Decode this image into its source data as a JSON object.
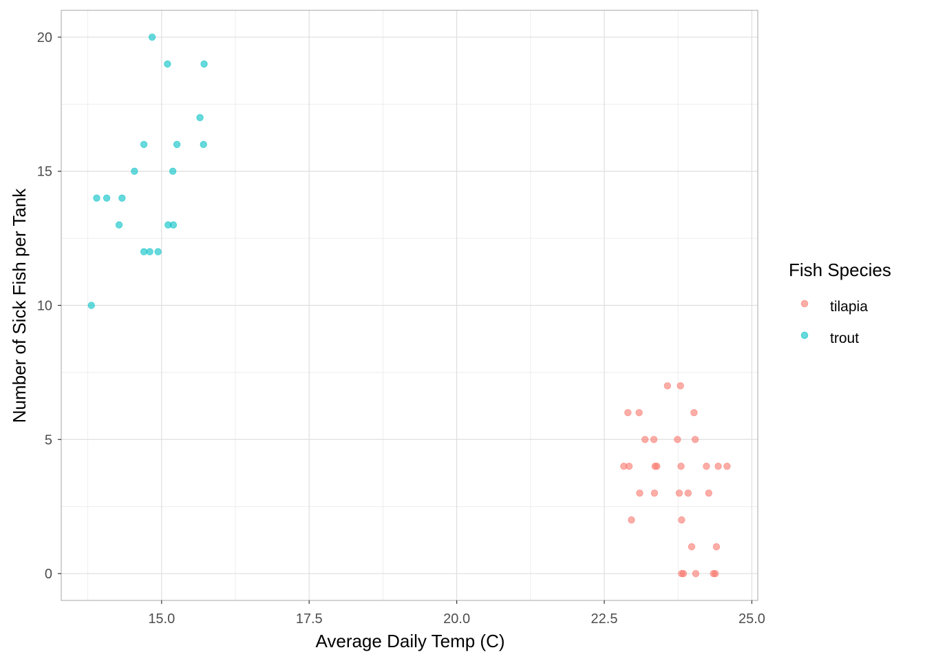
{
  "chart_data": {
    "type": "scatter",
    "title": "",
    "xlabel": "Average Daily Temp (C)",
    "ylabel": "Number of Sick Fish per Tank",
    "xlim": [
      13.3,
      25.1
    ],
    "ylim": [
      -1,
      21
    ],
    "x_ticks": [
      15.0,
      17.5,
      20.0,
      22.5,
      25.0
    ],
    "x_tick_labels": [
      "15.0",
      "17.5",
      "20.0",
      "22.5",
      "25.0"
    ],
    "y_ticks": [
      0,
      5,
      10,
      15,
      20
    ],
    "y_tick_labels": [
      "0",
      "5",
      "10",
      "15",
      "20"
    ],
    "grid": true,
    "legend": {
      "title": "Fish Species",
      "position": "right"
    },
    "series": [
      {
        "name": "tilapia",
        "color": "#F8766D",
        "points": [
          [
            23.57,
            7
          ],
          [
            23.79,
            7
          ],
          [
            22.9,
            6
          ],
          [
            23.09,
            6
          ],
          [
            24.02,
            6
          ],
          [
            23.19,
            5
          ],
          [
            23.34,
            5
          ],
          [
            23.74,
            5
          ],
          [
            24.04,
            5
          ],
          [
            22.83,
            4
          ],
          [
            22.92,
            4
          ],
          [
            23.36,
            4
          ],
          [
            23.39,
            4
          ],
          [
            23.8,
            4
          ],
          [
            24.23,
            4
          ],
          [
            24.43,
            4
          ],
          [
            24.58,
            4
          ],
          [
            23.1,
            3
          ],
          [
            23.35,
            3
          ],
          [
            23.77,
            3
          ],
          [
            23.92,
            3
          ],
          [
            24.27,
            3
          ],
          [
            22.96,
            2
          ],
          [
            23.81,
            2
          ],
          [
            23.98,
            1
          ],
          [
            24.4,
            1
          ],
          [
            23.81,
            0
          ],
          [
            23.84,
            0
          ],
          [
            24.05,
            0
          ],
          [
            24.35,
            0
          ],
          [
            24.38,
            0
          ]
        ]
      },
      {
        "name": "trout",
        "color": "#00BFC4",
        "points": [
          [
            14.84,
            20
          ],
          [
            15.1,
            19
          ],
          [
            15.72,
            19
          ],
          [
            15.65,
            17
          ],
          [
            14.7,
            16
          ],
          [
            15.26,
            16
          ],
          [
            15.71,
            16
          ],
          [
            14.54,
            15
          ],
          [
            15.19,
            15
          ],
          [
            13.9,
            14
          ],
          [
            14.07,
            14
          ],
          [
            14.33,
            14
          ],
          [
            14.28,
            13
          ],
          [
            15.11,
            13
          ],
          [
            15.2,
            13
          ],
          [
            14.7,
            12
          ],
          [
            14.8,
            12
          ],
          [
            14.94,
            12
          ],
          [
            13.81,
            10
          ]
        ]
      }
    ]
  }
}
